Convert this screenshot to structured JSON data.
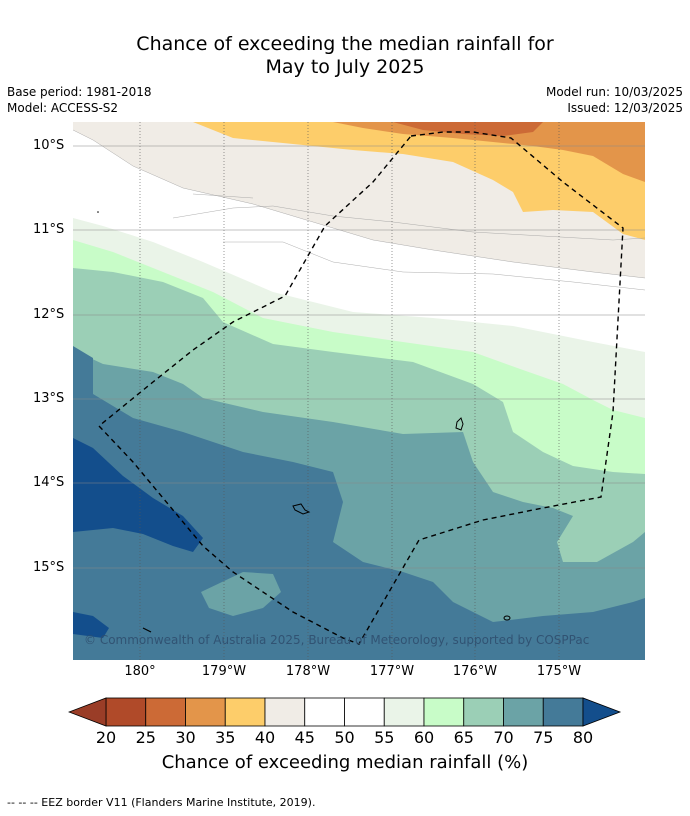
{
  "title_line1": "Chance of exceeding the median rainfall for",
  "title_line2": "May to July 2025",
  "meta_left": {
    "base_period": "Base period: 1981-2018",
    "model": "Model: ACCESS-S2"
  },
  "meta_right": {
    "model_run": "Model run: 10/03/2025",
    "issued": "Issued: 12/03/2025"
  },
  "map": {
    "lat_labels": [
      "10°S",
      "11°S",
      "12°S",
      "13°S",
      "14°S",
      "15°S"
    ],
    "lon_labels": [
      "180°",
      "179°W",
      "178°W",
      "177°W",
      "176°W",
      "175°W"
    ],
    "copyright": "© Commonwealth of Australia 2025, Bureau of Meteorology, supported by COSPPac"
  },
  "colorbar": {
    "ticks": [
      "20",
      "25",
      "30",
      "35",
      "40",
      "45",
      "50",
      "55",
      "60",
      "65",
      "70",
      "75",
      "80"
    ],
    "colors": [
      "#b04a29",
      "#cc6a36",
      "#e3954a",
      "#fdcd6a",
      "#f0ece6",
      "#ffffff",
      "#ffffff",
      "#eaf4e8",
      "#c8fcc8",
      "#9bcfb6",
      "#6ba3a6",
      "#447a98"
    ],
    "under_color": "#9a3d27",
    "over_color": "#134e8c",
    "label": "Chance of exceeding median rainfall (%)"
  },
  "footer": "-- -- -- EEZ border V11 (Flanders Marine Institute, 2019)."
}
